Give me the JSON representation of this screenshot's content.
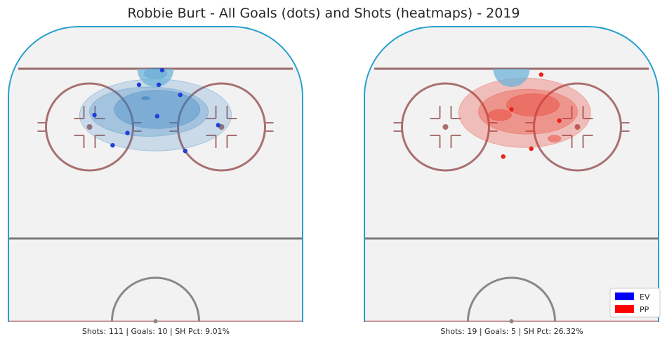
{
  "chart_data": {
    "type": "scatter",
    "title": "Robbie Burt - All Goals (dots) and Shots (heatmaps) - 2019",
    "legend": {
      "placement": "bottom-right",
      "entries": [
        {
          "label": "EV",
          "color": "#0000ff"
        },
        {
          "label": "PP",
          "color": "#ff0000"
        }
      ]
    },
    "panels": [
      {
        "strength": "EV",
        "caption": "Shots: 111 | Goals: 10 | SH Pct: 9.01%",
        "shots": 111,
        "goals_count": 10,
        "sh_pct": 9.01,
        "heat_color": "#2f7fc1",
        "dot_color": "#1f3fd8",
        "goals": [
          {
            "x": 4,
            "y": 85
          },
          {
            "x": -10,
            "y": 72
          },
          {
            "x": 2,
            "y": 72
          },
          {
            "x": 15,
            "y": 63
          },
          {
            "x": -37,
            "y": 45
          },
          {
            "x": 1,
            "y": 44
          },
          {
            "x": 38,
            "y": 36
          },
          {
            "x": -17,
            "y": 29
          },
          {
            "x": -26,
            "y": 18
          },
          {
            "x": 18,
            "y": 13
          }
        ]
      },
      {
        "strength": "PP",
        "caption": "Shots: 19 | Goals: 5 | SH Pct: 26.32%",
        "shots": 19,
        "goals_count": 5,
        "sh_pct": 26.32,
        "heat_color": "#e83b2c",
        "dot_color": "#e8221a",
        "goals": [
          {
            "x": 18,
            "y": 81
          },
          {
            "x": 0,
            "y": 50
          },
          {
            "x": 29,
            "y": 40
          },
          {
            "x": 12,
            "y": 15
          },
          {
            "x": -5,
            "y": 8
          }
        ]
      }
    ]
  }
}
